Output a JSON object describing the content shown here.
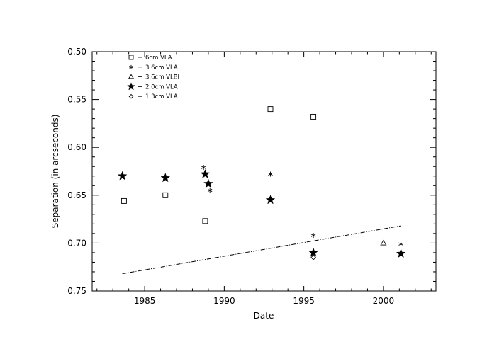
{
  "chart_data": {
    "type": "scatter",
    "title": "",
    "xlabel": "Date",
    "ylabel": "Separation (in arcseconds)",
    "xlim": [
      1981.7,
      2003.3
    ],
    "ylim": [
      0.75,
      0.5
    ],
    "y_inverted": true,
    "grid": false,
    "legend_position": "top-left",
    "xticks": [
      1985,
      1990,
      1995,
      2000
    ],
    "xtick_labels": [
      "1985",
      "1990",
      "1995",
      "2000"
    ],
    "yticks": [
      0.5,
      0.55,
      0.6,
      0.65,
      0.7,
      0.75
    ],
    "ytick_labels": [
      "0.50",
      "0.55",
      "0.60",
      "0.65",
      "0.70",
      "0.75"
    ],
    "series": [
      {
        "name": "6cm VLA",
        "marker": "square",
        "points": [
          [
            1983.7,
            0.656
          ],
          [
            1986.3,
            0.65
          ],
          [
            1988.8,
            0.677
          ],
          [
            1992.9,
            0.56
          ],
          [
            1995.6,
            0.568
          ]
        ]
      },
      {
        "name": "3.6cm VLA",
        "marker": "asterisk",
        "points": [
          [
            1988.7,
            0.621
          ],
          [
            1989.1,
            0.645
          ],
          [
            1992.9,
            0.628
          ],
          [
            1995.6,
            0.692
          ],
          [
            2001.1,
            0.701
          ]
        ]
      },
      {
        "name": "3.6cm VLBI",
        "marker": "triangle",
        "points": [
          [
            2000.0,
            0.7
          ]
        ]
      },
      {
        "name": "2.0cm VLA",
        "marker": "star",
        "points": [
          [
            1983.6,
            0.63
          ],
          [
            1986.3,
            0.632
          ],
          [
            1988.8,
            0.628
          ],
          [
            1989.0,
            0.638
          ],
          [
            1992.9,
            0.655
          ],
          [
            1995.6,
            0.71
          ],
          [
            2001.1,
            0.711
          ]
        ]
      },
      {
        "name": "1.3cm VLA",
        "marker": "diamond",
        "points": [
          [
            1995.6,
            0.715
          ]
        ]
      }
    ],
    "fit_line": {
      "style": "dash-dot",
      "points": [
        [
          1983.6,
          0.732
        ],
        [
          2001.1,
          0.682
        ]
      ]
    }
  }
}
